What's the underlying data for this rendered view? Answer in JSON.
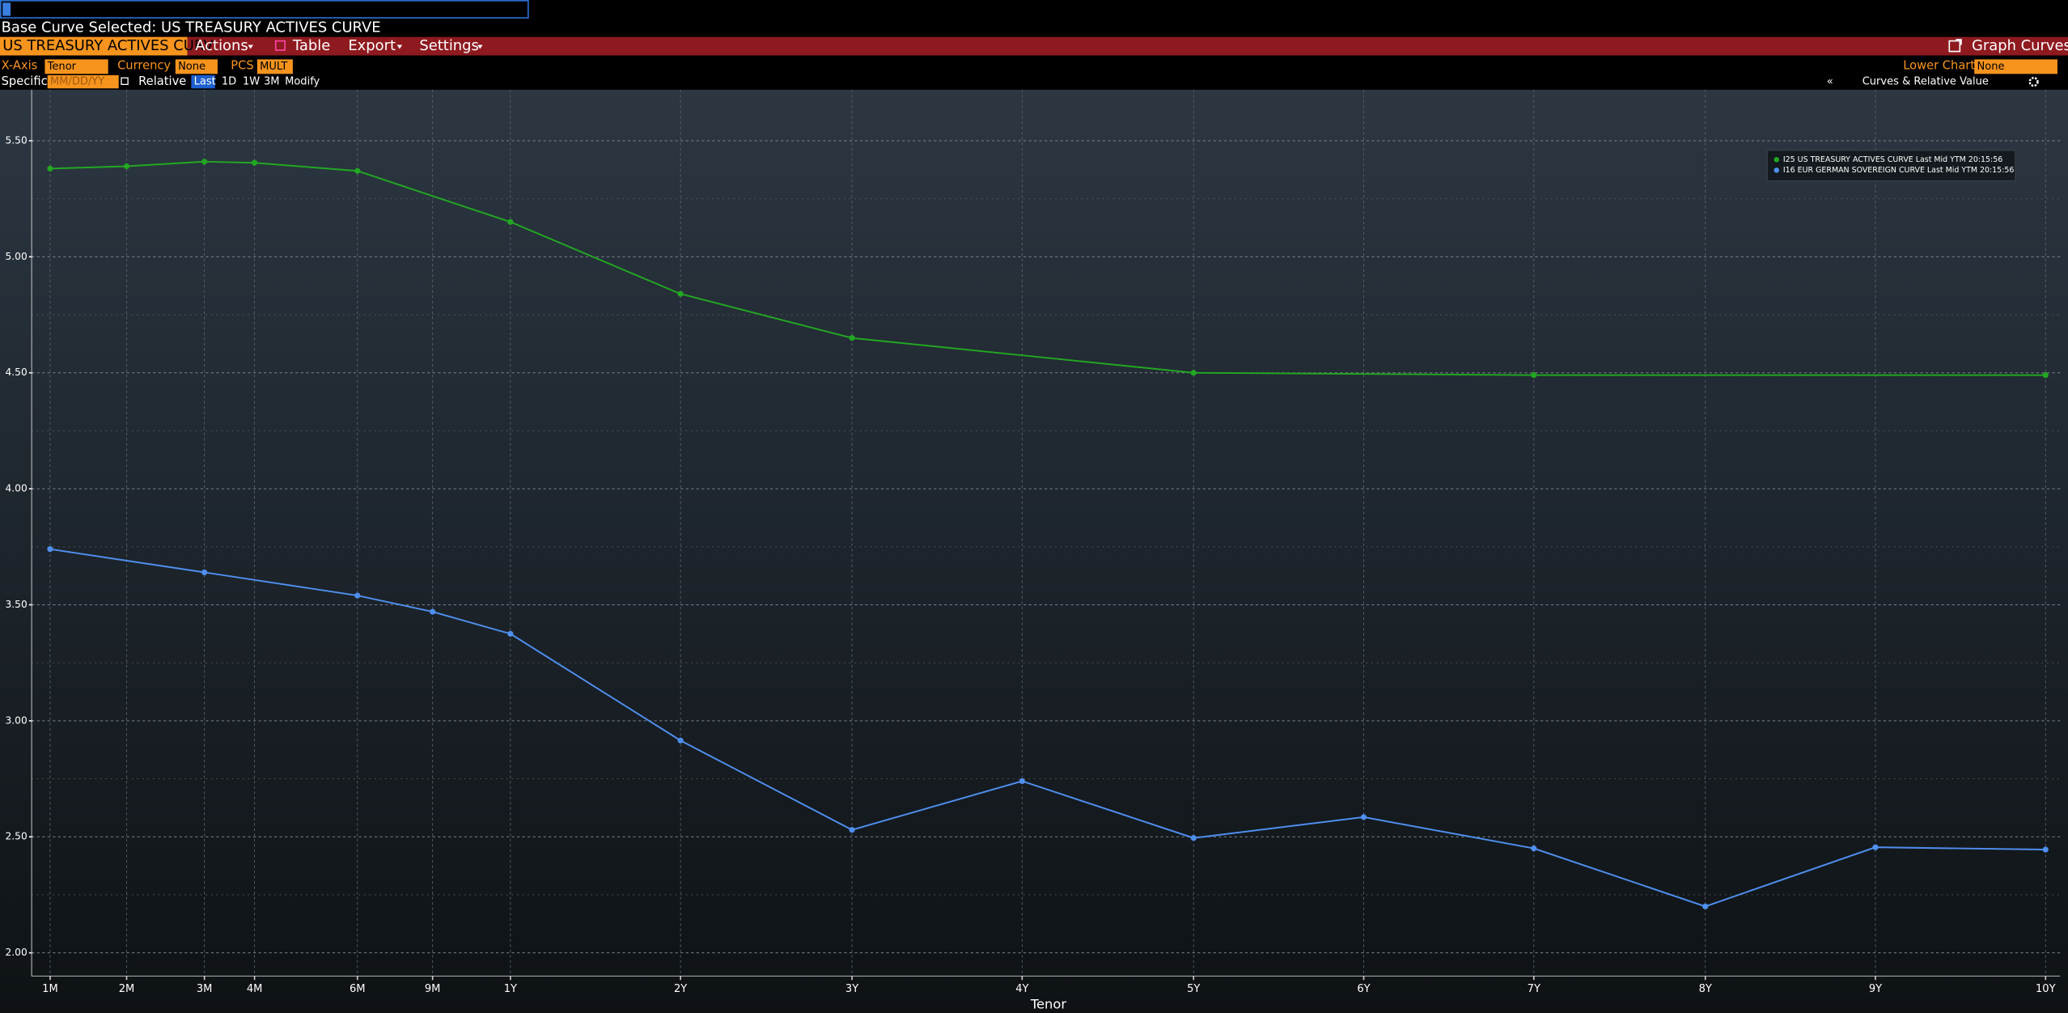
{
  "ui": {
    "base_curve": "Base Curve Selected: US TREASURY ACTIVES CURVE",
    "toolbar": {
      "curve_field": "US TREASURY ACTIVES CURV",
      "actions": "Actions",
      "table": "Table",
      "export": "Export",
      "settings": "Settings",
      "graph_curves": "Graph Curves"
    },
    "row1": {
      "xaxis": "X-Axis",
      "xaxis_value": "Tenor",
      "currency": "Currency",
      "currency_value": "None",
      "pcs": "PCS",
      "pcs_value": "MULT",
      "lower_chart": "Lower Chart",
      "lower_chart_value": "None"
    },
    "row2": {
      "specific": "Specific",
      "date_placeholder": "MM/DD/YY",
      "relative": "Relative",
      "last": "Last",
      "d1": "1D",
      "w1": "1W",
      "m3": "3M",
      "modify": "Modify",
      "collapse": "«",
      "panel": "Curves & Relative Value"
    }
  },
  "chart_data": {
    "type": "line",
    "x_label": "Tenor",
    "categories": [
      "1M",
      "2M",
      "3M",
      "4M",
      "6M",
      "9M",
      "1Y",
      "2Y",
      "3Y",
      "4Y",
      "5Y",
      "6Y",
      "7Y",
      "8Y",
      "9Y",
      "10Y"
    ],
    "ylim": [
      1.9,
      5.72
    ],
    "yticks": [
      {
        "value": 2,
        "label": "2.00"
      },
      {
        "value": 2.5,
        "label": "2.50"
      },
      {
        "value": 3,
        "label": "3.00"
      },
      {
        "value": 3.5,
        "label": "3.50"
      },
      {
        "value": 4,
        "label": "4.00"
      },
      {
        "value": 4.5,
        "label": "4.50"
      },
      {
        "value": 5,
        "label": "5.00"
      },
      {
        "value": 5.5,
        "label": "5.50"
      }
    ],
    "grid": true,
    "series": [
      {
        "name": "I25 US TREASURY ACTIVES CURVE Last Mid YTM 20:15:56",
        "color": "#22a822",
        "x": [
          "1M",
          "2M",
          "3M",
          "4M",
          "6M",
          "1Y",
          "2Y",
          "3Y",
          "5Y",
          "7Y",
          "10Y"
        ],
        "values": [
          5.38,
          5.39,
          5.41,
          5.405,
          5.37,
          5.15,
          4.84,
          4.65,
          4.5,
          4.49,
          4.49
        ]
      },
      {
        "name": "I16 EUR GERMAN SOVEREIGN CURVE Last Mid YTM 20:15:56",
        "color": "#4f8fef",
        "x": [
          "1M",
          "3M",
          "6M",
          "9M",
          "1Y",
          "2Y",
          "3Y",
          "4Y",
          "5Y",
          "6Y",
          "7Y",
          "8Y",
          "9Y",
          "10Y"
        ],
        "values": [
          3.74,
          3.64,
          3.54,
          3.47,
          3.375,
          2.915,
          2.53,
          2.74,
          2.495,
          2.585,
          2.45,
          2.2,
          2.455,
          2.445
        ]
      }
    ]
  }
}
